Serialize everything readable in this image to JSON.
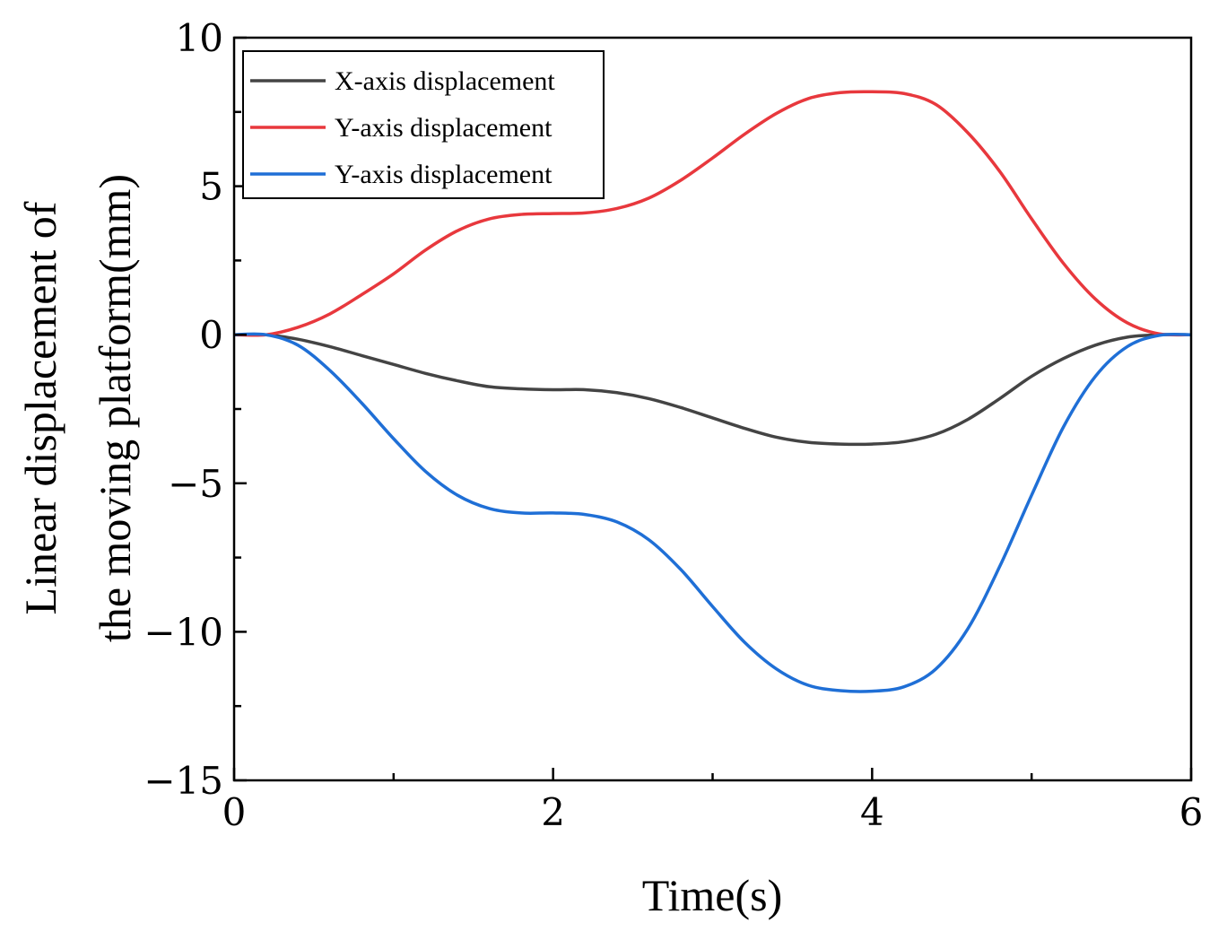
{
  "chart_data": {
    "type": "line",
    "title": "",
    "xlabel": "Time(s)",
    "ylabel_lines": [
      "Linear displacement of",
      "the moving platform(mm)"
    ],
    "xlim": [
      0,
      6
    ],
    "ylim": [
      -15,
      10
    ],
    "x_ticks": [
      0,
      2,
      4,
      6
    ],
    "x_tick_labels": [
      "0",
      "2",
      "4",
      "6"
    ],
    "y_ticks": [
      -15,
      -10,
      -5,
      0,
      5,
      10
    ],
    "y_tick_labels": [
      "−15",
      "−10",
      "−5",
      "0",
      "5",
      "10"
    ],
    "grid": false,
    "legend_position": "top-left",
    "series": [
      {
        "name": "X-axis displacement",
        "color": "#444444",
        "x": [
          0,
          0.2,
          0.4,
          0.6,
          0.8,
          1.0,
          1.2,
          1.4,
          1.6,
          1.8,
          2.0,
          2.2,
          2.4,
          2.6,
          2.8,
          3.0,
          3.2,
          3.4,
          3.6,
          3.8,
          4.0,
          4.2,
          4.4,
          4.6,
          4.8,
          5.0,
          5.2,
          5.4,
          5.6,
          5.8,
          6.0
        ],
        "y": [
          0,
          0,
          -0.15,
          -0.4,
          -0.7,
          -1.0,
          -1.3,
          -1.55,
          -1.75,
          -1.82,
          -1.85,
          -1.85,
          -1.95,
          -2.15,
          -2.45,
          -2.8,
          -3.15,
          -3.45,
          -3.62,
          -3.68,
          -3.68,
          -3.6,
          -3.35,
          -2.85,
          -2.15,
          -1.4,
          -0.8,
          -0.35,
          -0.08,
          0,
          0
        ]
      },
      {
        "name": "Y-axis displacement",
        "color": "#e8383d",
        "x": [
          0,
          0.2,
          0.4,
          0.6,
          0.8,
          1.0,
          1.2,
          1.4,
          1.6,
          1.8,
          2.0,
          2.2,
          2.4,
          2.6,
          2.8,
          3.0,
          3.2,
          3.4,
          3.6,
          3.8,
          4.0,
          4.2,
          4.4,
          4.6,
          4.8,
          5.0,
          5.2,
          5.4,
          5.6,
          5.8,
          6.0
        ],
        "y": [
          0,
          0,
          0.25,
          0.7,
          1.35,
          2.05,
          2.85,
          3.5,
          3.9,
          4.05,
          4.08,
          4.1,
          4.25,
          4.6,
          5.2,
          5.95,
          6.75,
          7.45,
          7.95,
          8.15,
          8.18,
          8.12,
          7.75,
          6.8,
          5.5,
          3.9,
          2.4,
          1.2,
          0.4,
          0.03,
          0
        ]
      },
      {
        "name": "Y-axis displacement",
        "color": "#1f6fd6",
        "x": [
          0,
          0.2,
          0.4,
          0.6,
          0.8,
          1.0,
          1.2,
          1.4,
          1.6,
          1.8,
          2.0,
          2.2,
          2.4,
          2.6,
          2.8,
          3.0,
          3.2,
          3.4,
          3.6,
          3.8,
          4.0,
          4.2,
          4.4,
          4.6,
          4.8,
          5.0,
          5.2,
          5.4,
          5.6,
          5.8,
          6.0
        ],
        "y": [
          0,
          0,
          -0.35,
          -1.2,
          -2.3,
          -3.5,
          -4.6,
          -5.4,
          -5.85,
          -6.0,
          -6.0,
          -6.05,
          -6.3,
          -6.9,
          -7.9,
          -9.15,
          -10.35,
          -11.25,
          -11.8,
          -11.98,
          -12.0,
          -11.85,
          -11.25,
          -9.9,
          -7.8,
          -5.4,
          -3.1,
          -1.4,
          -0.4,
          -0.02,
          0
        ]
      }
    ]
  }
}
